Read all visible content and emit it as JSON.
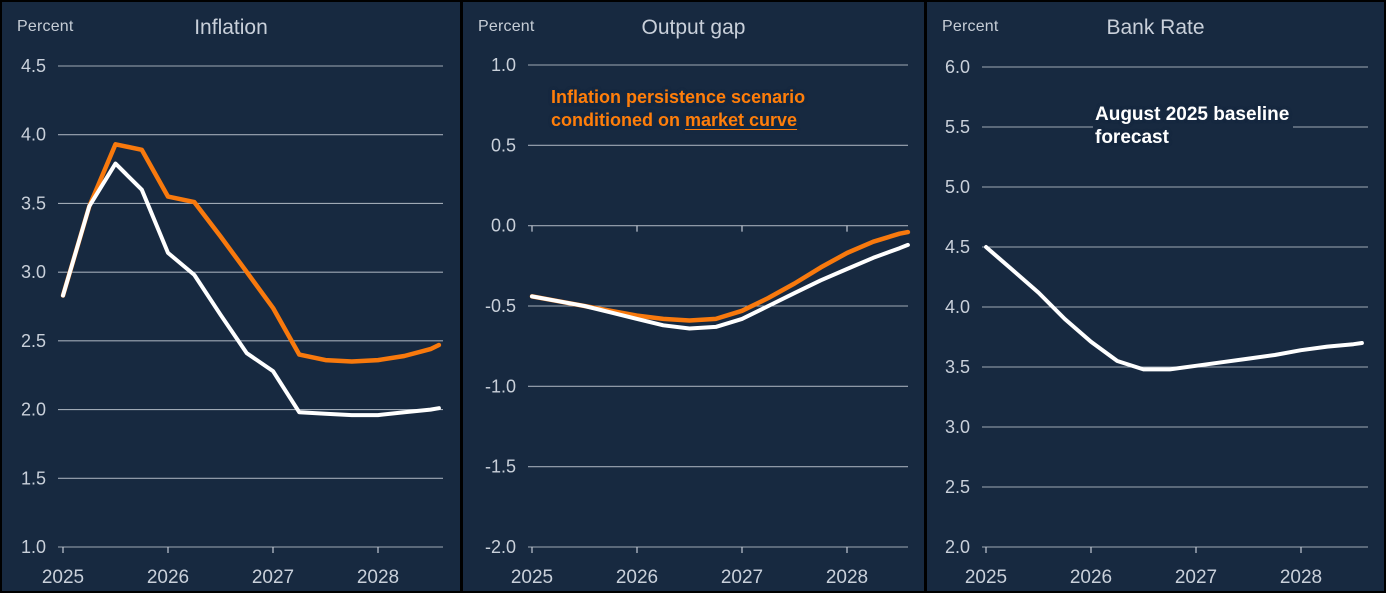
{
  "page": {
    "background": "#172940"
  },
  "colors": {
    "background": "#172940",
    "white_line": "#FFFFFF",
    "orange_line": "#F8790D",
    "orange_text": "#FF7E0A",
    "grid": "#C2C9D3",
    "axis_text": "#C9D0DA",
    "separator": "#000000"
  },
  "chart_data": [
    {
      "type": "line",
      "title": "Inflation",
      "unit": "Percent",
      "ylim": [
        1.0,
        4.5
      ],
      "ytick_step": 0.5,
      "grid": true,
      "legend_position": "none",
      "x_tick_labels": [
        "2025",
        "2026",
        "2027",
        "2028"
      ],
      "x_years": [
        2025.0,
        2025.25,
        2025.5,
        2025.75,
        2026.0,
        2026.25,
        2026.5,
        2026.75,
        2027.0,
        2027.25,
        2027.5,
        2027.75,
        2028.0,
        2028.25,
        2028.5,
        2028.58
      ],
      "series": [
        {
          "name": "Inflation persistence scenario conditioned on market curve",
          "color": "orange",
          "values": [
            2.83,
            3.48,
            3.93,
            3.89,
            3.55,
            3.51,
            3.26,
            3.0,
            2.74,
            2.4,
            2.36,
            2.35,
            2.36,
            2.39,
            2.44,
            2.47
          ]
        },
        {
          "name": "August 2025 baseline forecast",
          "color": "white",
          "values": [
            2.83,
            3.48,
            3.79,
            3.6,
            3.14,
            2.98,
            2.69,
            2.41,
            2.28,
            1.98,
            1.97,
            1.96,
            1.96,
            1.98,
            2.0,
            2.01
          ]
        }
      ]
    },
    {
      "type": "line",
      "title": "Output gap",
      "unit": "Percent",
      "ylim": [
        -2.0,
        1.0
      ],
      "ytick_step": 0.5,
      "grid": true,
      "zero_axis_ticks": true,
      "x_tick_labels": [
        "2025",
        "2026",
        "2027",
        "2028"
      ],
      "x_years": [
        2025.0,
        2025.25,
        2025.5,
        2025.75,
        2026.0,
        2026.25,
        2026.5,
        2026.75,
        2027.0,
        2027.25,
        2027.5,
        2027.75,
        2028.0,
        2028.25,
        2028.5,
        2028.58
      ],
      "series": [
        {
          "name": "Inflation persistence scenario conditioned on market curve",
          "color": "orange",
          "values": [
            -0.44,
            -0.47,
            -0.5,
            -0.53,
            -0.56,
            -0.58,
            -0.59,
            -0.58,
            -0.53,
            -0.45,
            -0.36,
            -0.26,
            -0.17,
            -0.1,
            -0.05,
            -0.04
          ]
        },
        {
          "name": "August 2025 baseline forecast",
          "color": "white",
          "values": [
            -0.44,
            -0.47,
            -0.5,
            -0.54,
            -0.58,
            -0.62,
            -0.64,
            -0.63,
            -0.58,
            -0.5,
            -0.42,
            -0.34,
            -0.27,
            -0.2,
            -0.14,
            -0.12
          ]
        }
      ],
      "annotation": {
        "lines": [
          "Inflation persistence scenario",
          "conditioned on market curve"
        ],
        "underline": "market curve",
        "color": "orange"
      }
    },
    {
      "type": "line",
      "title": "Bank Rate",
      "unit": "Percent",
      "ylim": [
        2.0,
        6.0
      ],
      "ytick_step": 0.5,
      "grid": true,
      "x_tick_labels": [
        "2025",
        "2026",
        "2027",
        "2028"
      ],
      "x_years": [
        2025.0,
        2025.25,
        2025.5,
        2025.75,
        2026.0,
        2026.25,
        2026.5,
        2026.75,
        2027.0,
        2027.25,
        2027.5,
        2027.75,
        2028.0,
        2028.25,
        2028.5,
        2028.58
      ],
      "series": [
        {
          "name": "August 2025 baseline forecast",
          "color": "white",
          "values": [
            4.5,
            4.31,
            4.12,
            3.9,
            3.71,
            3.55,
            3.48,
            3.48,
            3.51,
            3.54,
            3.57,
            3.6,
            3.64,
            3.67,
            3.69,
            3.7
          ]
        }
      ],
      "annotation": {
        "lines": [
          "August 2025 baseline",
          "forecast"
        ],
        "underline": null,
        "color": "white"
      }
    }
  ]
}
